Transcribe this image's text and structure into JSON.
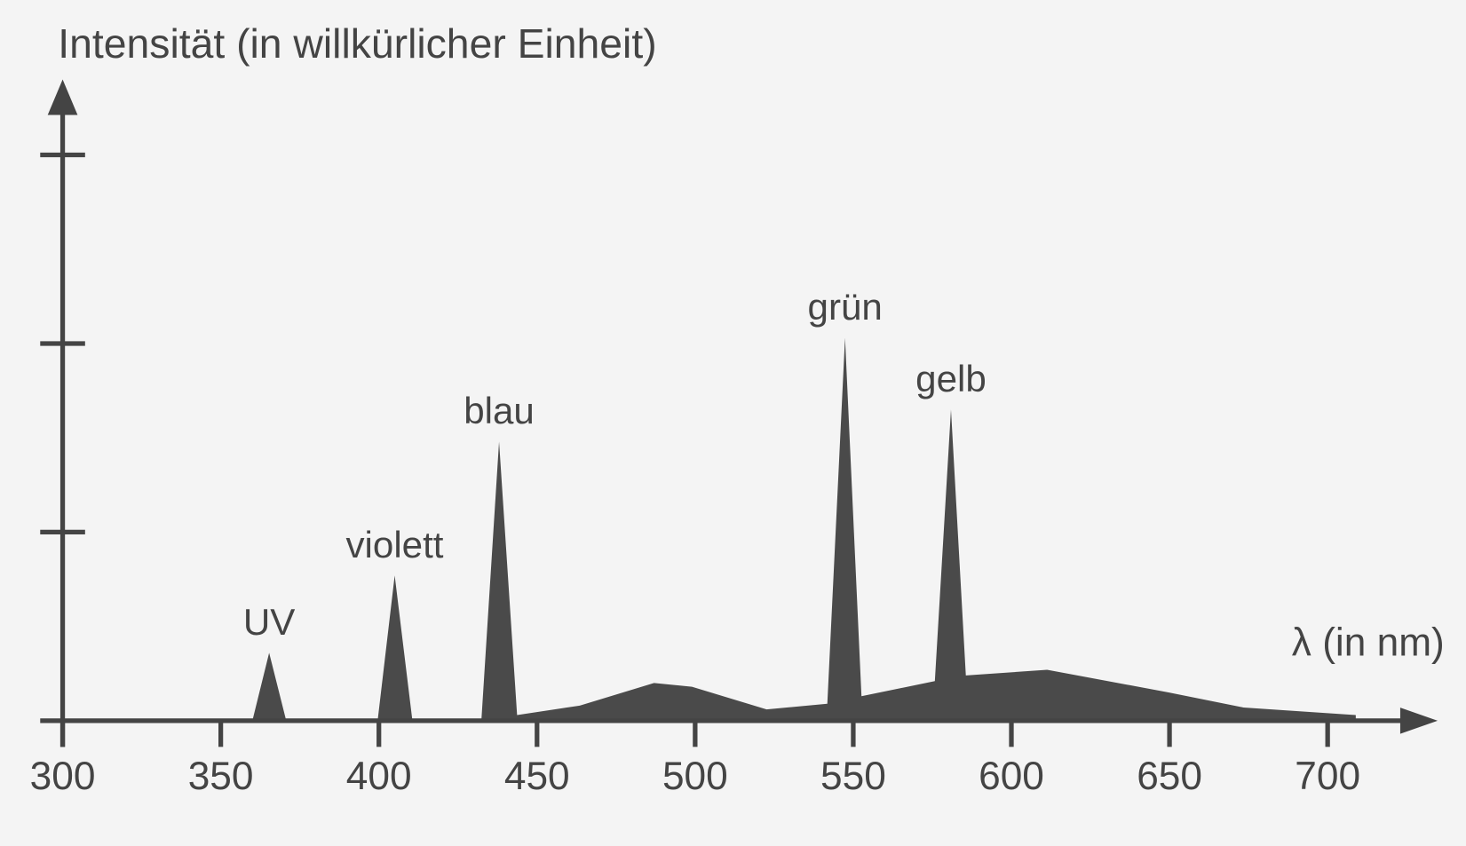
{
  "chart_data": {
    "type": "area",
    "title": "Intensität (in willkürlicher Einheit)",
    "x_label": "λ (in nm)",
    "x": [
      300,
      360,
      365.3,
      370.7,
      399.6,
      405,
      410.6,
      432.4,
      438,
      443.7,
      463.5,
      487,
      499,
      522.6,
      541.8,
      547.4,
      552.6,
      575.8,
      580.9,
      585.6,
      611.3,
      649.7,
      673.4,
      708.9
    ],
    "values": [
      0,
      0,
      0.36,
      0,
      0,
      0.77,
      0,
      0,
      1.48,
      0.03,
      0.08,
      0.2,
      0.18,
      0.06,
      0.09,
      2.03,
      0.13,
      0.21,
      1.65,
      0.24,
      0.27,
      0.15,
      0.07,
      0.03
    ],
    "color": "#4a4a4a",
    "xlim": [
      300,
      720
    ],
    "xticks": [
      300,
      350,
      400,
      450,
      500,
      550,
      600,
      650,
      700
    ],
    "ylim": [
      0,
      3.4
    ],
    "yticks": [
      1,
      2,
      3
    ],
    "annotations": [
      {
        "text": "UV",
        "x": 365.3
      },
      {
        "text": "violett",
        "x": 405
      },
      {
        "text": "blau",
        "x": 438
      },
      {
        "text": "grün",
        "x": 547.4
      },
      {
        "text": "gelb",
        "x": 580.9
      }
    ]
  }
}
